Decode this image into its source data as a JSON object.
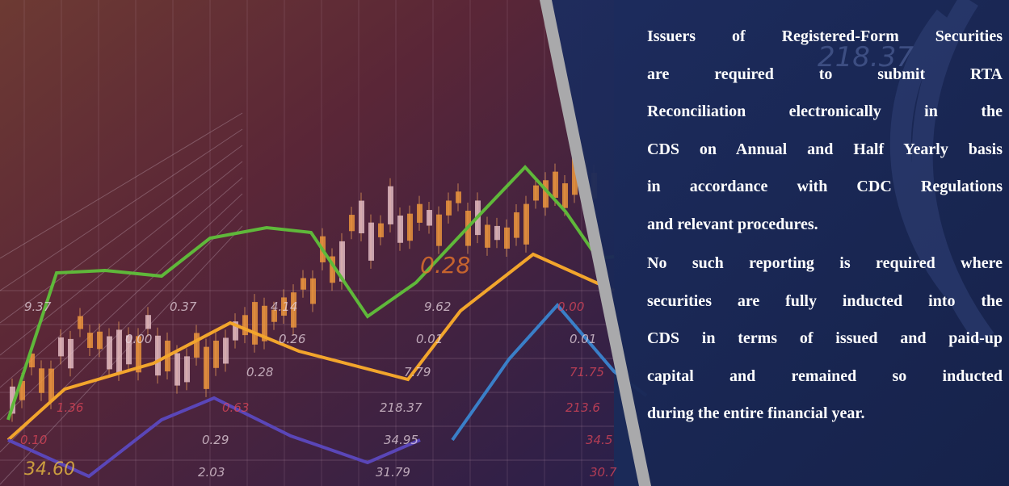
{
  "paragraphs": [
    {
      "lines": [
        "Issuers of Registered-Form Securities",
        "are required to submit RTA",
        "Reconciliation electronically in the",
        "CDS on Annual and Half Yearly basis",
        "in accordance with CDC Regulations",
        "and relevant procedures."
      ]
    },
    {
      "lines": [
        "No such reporting is required where",
        "securities are fully inducted into the",
        "CDS in terms of issued and paid-up",
        "capital and remained so inducted",
        "during the entire financial year."
      ]
    }
  ],
  "background_labels": [
    "9.37",
    "0.37",
    "4.14",
    "9.62",
    "0.00",
    "0.00",
    "0.26",
    "0.01",
    "0.01",
    "0.28",
    "7.79",
    "71.75",
    "1.36",
    "0.63",
    "218.37",
    "213.6",
    "0.10",
    "0.29",
    "34.95",
    "34.5",
    "34.60",
    "2.03",
    "31.79",
    "30.7",
    "0.28",
    "218.37"
  ]
}
